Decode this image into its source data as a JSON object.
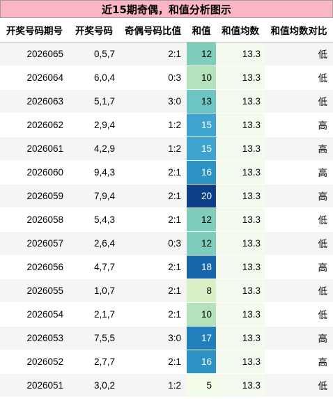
{
  "title": "近15期奇偶，和值分析图示",
  "columns": [
    "开奖号码期号",
    "开奖号码",
    "奇偶号码比值",
    "和值",
    "和值均数",
    "和值均数对比"
  ],
  "rows": [
    {
      "issue": "2026065",
      "numbers": "0,5,7",
      "ratio": "2:1",
      "sum": "12",
      "avg": "13.3",
      "cmp": "低",
      "bg": "#7fcdbb",
      "fg": "#000000"
    },
    {
      "issue": "2026064",
      "numbers": "6,0,4",
      "ratio": "0:3",
      "sum": "10",
      "avg": "13.3",
      "cmp": "低",
      "bg": "#b4e2ba",
      "fg": "#000000"
    },
    {
      "issue": "2026063",
      "numbers": "5,1,7",
      "ratio": "3:0",
      "sum": "13",
      "avg": "13.3",
      "cmp": "低",
      "bg": "#6cc4c3",
      "fg": "#000000"
    },
    {
      "issue": "2026062",
      "numbers": "2,9,4",
      "ratio": "1:2",
      "sum": "15",
      "avg": "13.3",
      "cmp": "高",
      "bg": "#3fa3cf",
      "fg": "#ffffff"
    },
    {
      "issue": "2026061",
      "numbers": "4,2,9",
      "ratio": "1:2",
      "sum": "15",
      "avg": "13.3",
      "cmp": "高",
      "bg": "#3fa3cf",
      "fg": "#ffffff"
    },
    {
      "issue": "2026060",
      "numbers": "9,4,3",
      "ratio": "2:1",
      "sum": "16",
      "avg": "13.3",
      "cmp": "高",
      "bg": "#2d93c5",
      "fg": "#ffffff"
    },
    {
      "issue": "2026059",
      "numbers": "7,9,4",
      "ratio": "2:1",
      "sum": "20",
      "avg": "13.3",
      "cmp": "高",
      "bg": "#0b3f88",
      "fg": "#ffffff"
    },
    {
      "issue": "2026058",
      "numbers": "5,4,3",
      "ratio": "2:1",
      "sum": "12",
      "avg": "13.3",
      "cmp": "低",
      "bg": "#7fcdbb",
      "fg": "#000000"
    },
    {
      "issue": "2026057",
      "numbers": "2,6,4",
      "ratio": "0:3",
      "sum": "12",
      "avg": "13.3",
      "cmp": "低",
      "bg": "#7fcdbb",
      "fg": "#000000"
    },
    {
      "issue": "2026056",
      "numbers": "4,7,7",
      "ratio": "2:1",
      "sum": "18",
      "avg": "13.3",
      "cmp": "高",
      "bg": "#1766ac",
      "fg": "#ffffff"
    },
    {
      "issue": "2026055",
      "numbers": "1,0,7",
      "ratio": "2:1",
      "sum": "8",
      "avg": "13.3",
      "cmp": "低",
      "bg": "#d9f0c6",
      "fg": "#000000"
    },
    {
      "issue": "2026054",
      "numbers": "2,1,7",
      "ratio": "2:1",
      "sum": "10",
      "avg": "13.3",
      "cmp": "低",
      "bg": "#b4e2ba",
      "fg": "#000000"
    },
    {
      "issue": "2026053",
      "numbers": "7,5,5",
      "ratio": "3:0",
      "sum": "17",
      "avg": "13.3",
      "cmp": "高",
      "bg": "#2180bc",
      "fg": "#ffffff"
    },
    {
      "issue": "2026052",
      "numbers": "2,7,7",
      "ratio": "2:1",
      "sum": "16",
      "avg": "13.3",
      "cmp": "高",
      "bg": "#2d93c5",
      "fg": "#ffffff"
    },
    {
      "issue": "2026051",
      "numbers": "3,0,2",
      "ratio": "1:2",
      "sum": "5",
      "avg": "13.3",
      "cmp": "低",
      "bg": "#f3fbe9",
      "fg": "#000000"
    }
  ]
}
